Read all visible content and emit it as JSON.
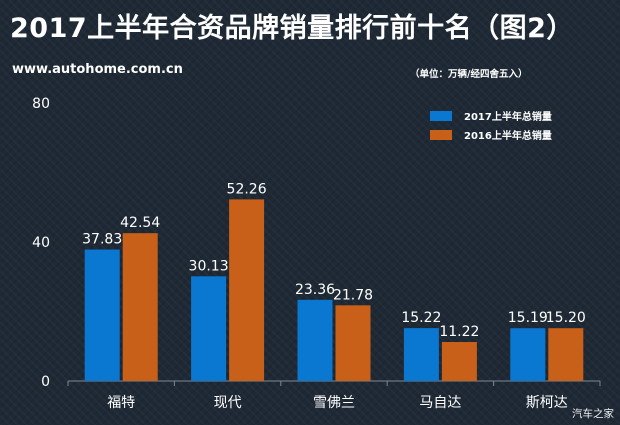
{
  "title": "2017上半年合资品牌销量排行前十名（图2）",
  "source_url": "www.autohome.com.cn",
  "unit_note": "（单位：万辆/经四舍五入）",
  "watermark": "汽车之家",
  "colors": {
    "series_2017": "#0a78d1",
    "series_2016": "#c8601a",
    "axis": "#7a8794",
    "background": "#1e2935"
  },
  "chart_data": {
    "type": "bar",
    "categories": [
      "福特",
      "现代",
      "雪佛兰",
      "马自达",
      "斯柯达"
    ],
    "series": [
      {
        "name": "2017上半年总销量",
        "values": [
          37.83,
          30.13,
          23.36,
          15.22,
          15.19
        ],
        "labels": [
          "37.83",
          "30.13",
          "23.36",
          "15.22",
          "15.19"
        ]
      },
      {
        "name": "2016上半年总销量",
        "values": [
          42.54,
          52.26,
          21.78,
          11.22,
          15.2
        ],
        "labels": [
          "42.54",
          "52.26",
          "21.78",
          "11.22",
          "15.20"
        ]
      }
    ],
    "ylim": [
      0,
      80
    ],
    "yticks": [
      "0",
      "40",
      "80"
    ],
    "legend": "top-right",
    "grid": false
  }
}
